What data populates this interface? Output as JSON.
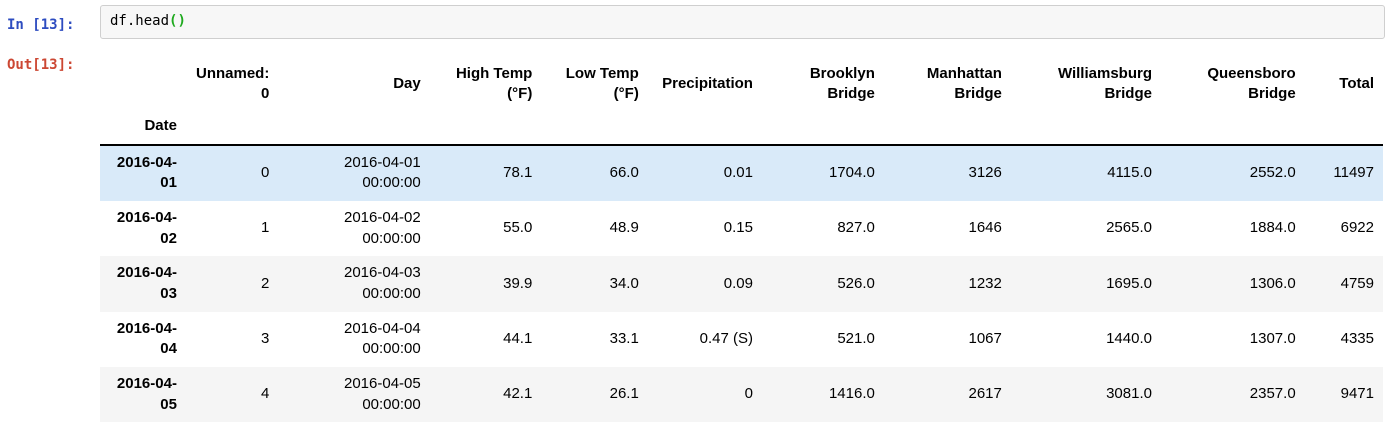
{
  "notebook": {
    "in_prompt": "In [13]:",
    "out_prompt": "Out[13]:",
    "code_tokens": [
      {
        "text": "df.head",
        "color": "#000000",
        "bold": false
      },
      {
        "text": "()",
        "color": "#1faa1f",
        "bold": true
      }
    ]
  },
  "table": {
    "index_name": "Date",
    "columns": [
      "Unnamed: 0",
      "Day",
      "High Temp (°F)",
      "Low Temp (°F)",
      "Precipitation",
      "Brooklyn Bridge",
      "Manhattan Bridge",
      "Williamsburg Bridge",
      "Queensboro Bridge",
      "Total"
    ],
    "rows": [
      {
        "index": "2016-04-01",
        "highlighted": true,
        "cells": [
          "0",
          "2016-04-01 00:00:00",
          "78.1",
          "66.0",
          "0.01",
          "1704.0",
          "3126",
          "4115.0",
          "2552.0",
          "11497"
        ]
      },
      {
        "index": "2016-04-02",
        "highlighted": false,
        "cells": [
          "1",
          "2016-04-02 00:00:00",
          "55.0",
          "48.9",
          "0.15",
          "827.0",
          "1646",
          "2565.0",
          "1884.0",
          "6922"
        ]
      },
      {
        "index": "2016-04-03",
        "highlighted": false,
        "cells": [
          "2",
          "2016-04-03 00:00:00",
          "39.9",
          "34.0",
          "0.09",
          "526.0",
          "1232",
          "1695.0",
          "1306.0",
          "4759"
        ]
      },
      {
        "index": "2016-04-04",
        "highlighted": false,
        "cells": [
          "3",
          "2016-04-04 00:00:00",
          "44.1",
          "33.1",
          "0.47 (S)",
          "521.0",
          "1067",
          "1440.0",
          "1307.0",
          "4335"
        ]
      },
      {
        "index": "2016-04-05",
        "highlighted": false,
        "cells": [
          "4",
          "2016-04-05 00:00:00",
          "42.1",
          "26.1",
          "0",
          "1416.0",
          "2617",
          "3081.0",
          "2357.0",
          "9471"
        ]
      }
    ]
  },
  "colors": {
    "in_prompt": "#2d4cc0",
    "out_prompt": "#cc4733",
    "matched_bracket_green": "#1faa1f",
    "highlight_row_blue": "#d9eaf9",
    "stripe_gray": "#f5f5f5",
    "header_border": "#000000",
    "input_box_bg": "#f7f7f7",
    "input_box_border": "#cfcfcf"
  }
}
